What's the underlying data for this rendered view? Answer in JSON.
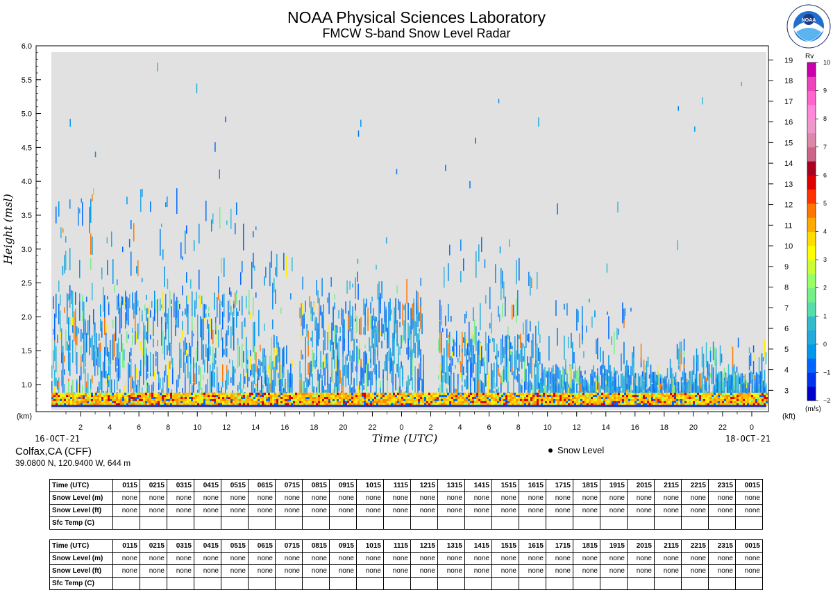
{
  "header": {
    "title": "NOAA Physical Sciences Laboratory",
    "subtitle": "FMCW S-band Snow Level Radar"
  },
  "site": {
    "name": "Colfax,CA (CFF)",
    "coords": "39.0800 N, 120.9400 W, 644 m"
  },
  "legend": {
    "snow_level": "Snow Level"
  },
  "colors": {
    "plot_bg": "#e1e1e1",
    "colorbar": [
      "#0000cc",
      "#0033ee",
      "#0066ff",
      "#0099ee",
      "#22aadd",
      "#33bbcc",
      "#55ddaa",
      "#77ee88",
      "#99ff66",
      "#ccff33",
      "#ffff00",
      "#ffdd00",
      "#ffaa00",
      "#ff7700",
      "#ff3300",
      "#dd0000",
      "#aa0022",
      "#cc6688",
      "#dd88aa",
      "#ee99cc",
      "#ff88dd",
      "#ff66cc",
      "#ee44bb",
      "#cc00aa"
    ]
  },
  "chart_data": {
    "type": "heatmap",
    "title": "NOAA Physical Sciences Laboratory",
    "subtitle": "FMCW S-band Snow Level Radar",
    "xlabel": "Time (UTC)",
    "ylabel": "Height (msl)",
    "y_unit_left": "(km)",
    "y_unit_right": "(kft)",
    "x_start_label": "16-OCT-21",
    "x_end_label": "18-OCT-21",
    "x_range_hours": [
      0,
      49
    ],
    "x_tick_hours": [
      2,
      4,
      6,
      8,
      10,
      12,
      14,
      16,
      18,
      20,
      22,
      24,
      26,
      28,
      30,
      32,
      34,
      36,
      38,
      40,
      42,
      44,
      46,
      48
    ],
    "x_tick_labels": [
      "2",
      "4",
      "6",
      "8",
      "10",
      "12",
      "14",
      "16",
      "18",
      "20",
      "22",
      "0",
      "2",
      "4",
      "6",
      "8",
      "10",
      "12",
      "14",
      "16",
      "18",
      "20",
      "22",
      "0"
    ],
    "ylim_km": [
      0.6,
      6.0
    ],
    "y_ticks_km": [
      "1.0",
      "1.5",
      "2.0",
      "2.5",
      "3.0",
      "3.5",
      "4.0",
      "4.5",
      "5.0",
      "5.5",
      "6.0"
    ],
    "y_ticks_kft": [
      "3",
      "4",
      "5",
      "6",
      "7",
      "8",
      "9",
      "10",
      "11",
      "12",
      "13",
      "14",
      "15",
      "16",
      "17",
      "18",
      "19"
    ],
    "grid": false,
    "colorbar": {
      "label": "Rv",
      "unit": "(m/s)",
      "range": [
        -2,
        10
      ],
      "tick_labels": [
        "−2",
        "−1",
        "0",
        "1",
        "2",
        "3",
        "4",
        "5",
        "6",
        "7",
        "8",
        "9",
        "10"
      ]
    },
    "echo_regions": [
      {
        "t_start": 0.0,
        "t_end": 14.0,
        "top_km": 3.9,
        "dense_top_km": 2.4
      },
      {
        "t_start": 13.8,
        "t_end": 16.5,
        "top_km": 3.0,
        "dense_top_km": 1.6
      },
      {
        "t_start": 17.0,
        "t_end": 25.5,
        "top_km": 2.6,
        "dense_top_km": 2.3
      },
      {
        "t_start": 26.5,
        "t_end": 33.5,
        "top_km": 3.2,
        "dense_top_km": 1.8
      },
      {
        "t_start": 33.5,
        "t_end": 40.0,
        "top_km": 2.3,
        "dense_top_km": 1.3
      },
      {
        "t_start": 40.0,
        "t_end": 49.0,
        "top_km": 1.7,
        "dense_top_km": 1.2
      }
    ],
    "surface_band_km": [
      0.7,
      0.88
    ]
  },
  "table_rows": [
    "Time (UTC)",
    "Snow Level (m)",
    "Snow Level (ft)",
    "Sfc Temp (C)"
  ],
  "table1": {
    "times": [
      "0115",
      "0215",
      "0315",
      "0415",
      "0515",
      "0615",
      "0715",
      "0815",
      "0915",
      "1015",
      "1115",
      "1215",
      "1315",
      "1415",
      "1515",
      "1615",
      "1715",
      "1815",
      "1915",
      "2015",
      "2115",
      "2215",
      "2315",
      "0015"
    ],
    "snow_m": [
      "none",
      "none",
      "none",
      "none",
      "none",
      "none",
      "none",
      "none",
      "none",
      "none",
      "none",
      "none",
      "none",
      "none",
      "none",
      "none",
      "none",
      "none",
      "none",
      "none",
      "none",
      "none",
      "none",
      "none"
    ],
    "snow_ft": [
      "none",
      "none",
      "none",
      "none",
      "none",
      "none",
      "none",
      "none",
      "none",
      "none",
      "none",
      "none",
      "none",
      "none",
      "none",
      "none",
      "none",
      "none",
      "none",
      "none",
      "none",
      "none",
      "none",
      "none"
    ],
    "sfc_temp": [
      "",
      "",
      "",
      "",
      "",
      "",
      "",
      "",
      "",
      "",
      "",
      "",
      "",
      "",
      "",
      "",
      "",
      "",
      "",
      "",
      "",
      "",
      "",
      ""
    ]
  },
  "table2": {
    "times": [
      "0115",
      "0215",
      "0315",
      "0415",
      "0515",
      "0615",
      "0715",
      "0815",
      "0915",
      "1015",
      "1115",
      "1215",
      "1315",
      "1415",
      "1515",
      "1615",
      "1715",
      "1815",
      "1915",
      "2015",
      "2115",
      "2215",
      "2315",
      "0015"
    ],
    "snow_m": [
      "none",
      "none",
      "none",
      "none",
      "none",
      "none",
      "none",
      "none",
      "none",
      "none",
      "none",
      "none",
      "none",
      "none",
      "none",
      "none",
      "none",
      "none",
      "none",
      "none",
      "none",
      "none",
      "none",
      "none"
    ],
    "snow_ft": [
      "none",
      "none",
      "none",
      "none",
      "none",
      "none",
      "none",
      "none",
      "none",
      "none",
      "none",
      "none",
      "none",
      "none",
      "none",
      "none",
      "none",
      "none",
      "none",
      "none",
      "none",
      "none",
      "none",
      "none"
    ],
    "sfc_temp": [
      "",
      "",
      "",
      "",
      "",
      "",
      "",
      "",
      "",
      "",
      "",
      "",
      "",
      "",
      "",
      "",
      "",
      "",
      "",
      "",
      "",
      "",
      "",
      ""
    ]
  }
}
